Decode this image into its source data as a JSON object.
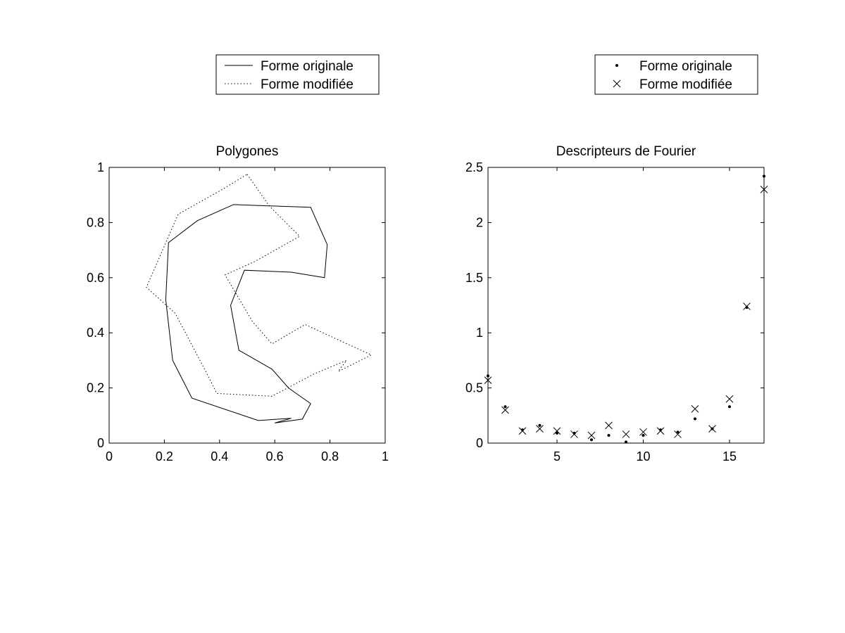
{
  "chart_data": [
    {
      "type": "line",
      "title": "Polygones",
      "xlabel": "",
      "ylabel": "",
      "xlim": [
        0,
        1
      ],
      "ylim": [
        0,
        1
      ],
      "xticks": [
        {
          "value": 0,
          "label": "0"
        },
        {
          "value": 0.2,
          "label": "0.2"
        },
        {
          "value": 0.4,
          "label": "0.4"
        },
        {
          "value": 0.6,
          "label": "0.6"
        },
        {
          "value": 0.8,
          "label": "0.8"
        },
        {
          "value": 1,
          "label": "1"
        }
      ],
      "yticks": [
        {
          "value": 0,
          "label": "0"
        },
        {
          "value": 0.2,
          "label": "0.2"
        },
        {
          "value": 0.4,
          "label": "0.4"
        },
        {
          "value": 0.6,
          "label": "0.6"
        },
        {
          "value": 0.8,
          "label": "0.8"
        },
        {
          "value": 1,
          "label": "1"
        }
      ],
      "grid": false,
      "legend": {
        "placement": "above-plot",
        "entries": [
          "Forme originale",
          "Forme modifiée"
        ]
      },
      "series": [
        {
          "name": "Forme originale",
          "style": "solid",
          "points": [
            [
              0.45,
              0.865
            ],
            [
              0.73,
              0.855
            ],
            [
              0.79,
              0.72
            ],
            [
              0.78,
              0.6
            ],
            [
              0.66,
              0.62
            ],
            [
              0.49,
              0.627
            ],
            [
              0.44,
              0.5
            ],
            [
              0.47,
              0.337
            ],
            [
              0.59,
              0.268
            ],
            [
              0.65,
              0.2
            ],
            [
              0.73,
              0.143
            ],
            [
              0.7,
              0.087
            ],
            [
              0.6,
              0.073
            ],
            [
              0.66,
              0.09
            ],
            [
              0.54,
              0.082
            ],
            [
              0.3,
              0.163
            ],
            [
              0.23,
              0.3
            ],
            [
              0.205,
              0.52
            ],
            [
              0.215,
              0.727
            ],
            [
              0.32,
              0.807
            ],
            [
              0.45,
              0.865
            ]
          ]
        },
        {
          "name": "Forme modifiée",
          "style": "dotted",
          "points": [
            [
              0.5,
              0.975
            ],
            [
              0.58,
              0.86
            ],
            [
              0.69,
              0.75
            ],
            [
              0.53,
              0.66
            ],
            [
              0.42,
              0.61
            ],
            [
              0.52,
              0.44
            ],
            [
              0.59,
              0.36
            ],
            [
              0.71,
              0.43
            ],
            [
              0.84,
              0.37
            ],
            [
              0.95,
              0.32
            ],
            [
              0.83,
              0.26
            ],
            [
              0.86,
              0.3
            ],
            [
              0.74,
              0.25
            ],
            [
              0.59,
              0.17
            ],
            [
              0.39,
              0.18
            ],
            [
              0.35,
              0.26
            ],
            [
              0.24,
              0.47
            ],
            [
              0.135,
              0.565
            ],
            [
              0.25,
              0.83
            ],
            [
              0.41,
              0.92
            ],
            [
              0.5,
              0.975
            ]
          ]
        }
      ]
    },
    {
      "type": "scatter",
      "title": "Descripteurs de Fourier",
      "xlabel": "",
      "ylabel": "",
      "xlim": [
        1,
        17
      ],
      "ylim": [
        0,
        2.5
      ],
      "xticks": [
        {
          "value": 5,
          "label": "5"
        },
        {
          "value": 10,
          "label": "10"
        },
        {
          "value": 15,
          "label": "15"
        }
      ],
      "yticks": [
        {
          "value": 0,
          "label": "0"
        },
        {
          "value": 0.5,
          "label": "0.5"
        },
        {
          "value": 1,
          "label": "1"
        },
        {
          "value": 1.5,
          "label": "1.5"
        },
        {
          "value": 2,
          "label": "2"
        },
        {
          "value": 2.5,
          "label": "2.5"
        }
      ],
      "grid": false,
      "legend": {
        "placement": "above-plot",
        "entries": [
          "Forme originale",
          "Forme modifiée"
        ]
      },
      "x": [
        1,
        2,
        3,
        4,
        5,
        6,
        7,
        8,
        9,
        10,
        11,
        12,
        13,
        14,
        15,
        16,
        17
      ],
      "series": [
        {
          "name": "Forme originale",
          "marker": "dot",
          "values": [
            0.61,
            0.33,
            0.12,
            0.16,
            0.09,
            0.09,
            0.03,
            0.07,
            0.01,
            0.07,
            0.12,
            0.1,
            0.22,
            0.13,
            0.33,
            1.23,
            2.42
          ]
        },
        {
          "name": "Forme modifiée",
          "marker": "x",
          "values": [
            0.57,
            0.3,
            0.11,
            0.13,
            0.11,
            0.08,
            0.07,
            0.16,
            0.08,
            0.1,
            0.11,
            0.08,
            0.31,
            0.13,
            0.4,
            1.24,
            2.3
          ]
        }
      ]
    }
  ]
}
